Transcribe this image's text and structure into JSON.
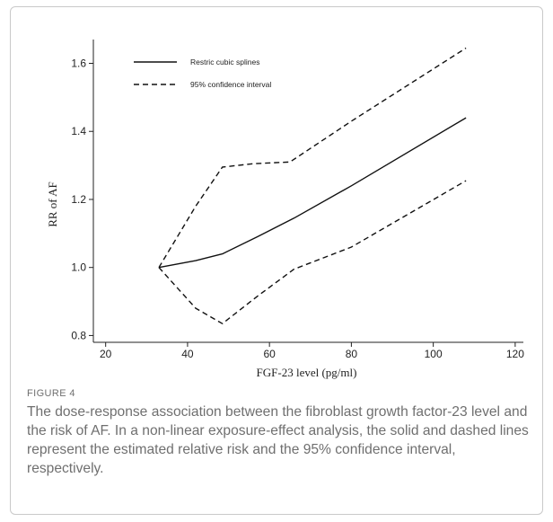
{
  "chart_data": {
    "type": "line",
    "xlabel": "FGF-23 level (pg/ml)",
    "ylabel": "RR of AF",
    "xlim": [
      17,
      122
    ],
    "ylim": [
      0.78,
      1.67
    ],
    "x_ticks": [
      20,
      40,
      60,
      80,
      100,
      120
    ],
    "y_ticks": [
      0.8,
      1.0,
      1.2,
      1.4,
      1.6
    ],
    "x_tick_labels": [
      "20",
      "40",
      "60",
      "80",
      "100",
      "120"
    ],
    "y_tick_labels": [
      "0.8",
      "1.0",
      "1.2",
      "1.4",
      "1.6"
    ],
    "grid": false,
    "legend_position": "top-left",
    "series": [
      {
        "name": "Restric cubic splines",
        "style": "solid",
        "points": [
          [
            33,
            1.0
          ],
          [
            42,
            1.02
          ],
          [
            48.5,
            1.04
          ],
          [
            57,
            1.09
          ],
          [
            66,
            1.145
          ],
          [
            80,
            1.24
          ],
          [
            108,
            1.44
          ]
        ]
      },
      {
        "name": "95% confidence interval",
        "style": "dashed",
        "points": [
          [
            33,
            1.0
          ],
          [
            38,
            1.1
          ],
          [
            42,
            1.18
          ],
          [
            48.5,
            1.295
          ],
          [
            56,
            1.305
          ],
          [
            65,
            1.31
          ],
          [
            80,
            1.43
          ],
          [
            108,
            1.645
          ]
        ]
      },
      {
        "name": "",
        "style": "dashed",
        "points": [
          [
            33,
            1.0
          ],
          [
            42,
            0.88
          ],
          [
            48.5,
            0.835
          ],
          [
            57,
            0.915
          ],
          [
            66,
            0.995
          ],
          [
            80,
            1.06
          ],
          [
            108,
            1.255
          ]
        ]
      }
    ]
  },
  "caption": {
    "label": "FIGURE 4",
    "text": "The dose-response association between the fibroblast growth factor-23 level and the risk of AF. In a non-linear exposure-effect analysis, the solid and dashed lines represent the estimated relative risk and the 95% confidence interval, respectively."
  },
  "colors": {
    "line": "#111111",
    "axis": "#222222",
    "caption": "#6f6f6f",
    "border": "#c9c9c9"
  }
}
